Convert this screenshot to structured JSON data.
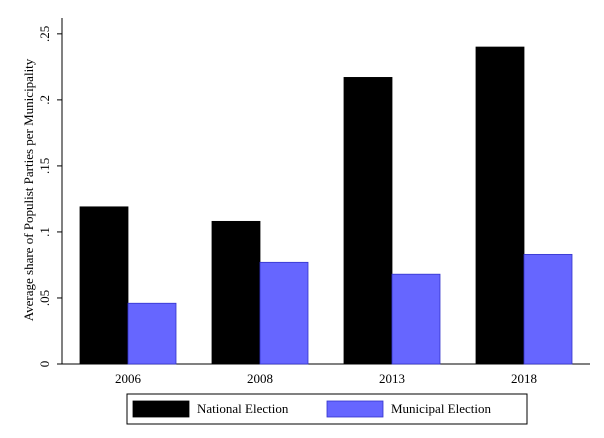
{
  "chart_data": {
    "type": "bar",
    "y_label": "Average share of Populist Parties per Municipality",
    "categories": [
      "2006",
      "2008",
      "2013",
      "2018"
    ],
    "series": [
      {
        "name": "National Election",
        "color": "#000000",
        "values": [
          0.119,
          0.108,
          0.217,
          0.24
        ]
      },
      {
        "name": "Municipal Election",
        "color": "#6666ff",
        "values": [
          0.046,
          0.077,
          0.068,
          0.083
        ]
      }
    ],
    "ylim": [
      0,
      0.262
    ],
    "yticks": [
      0,
      {
        "value": 0.05,
        "label": ".05"
      },
      {
        "value": 0.1,
        "label": ".1"
      },
      {
        "value": 0.15,
        "label": ".15"
      },
      {
        "value": 0.2,
        "label": ".2"
      },
      {
        "value": 0.25,
        "label": ".25"
      }
    ],
    "legend": "bottom"
  }
}
